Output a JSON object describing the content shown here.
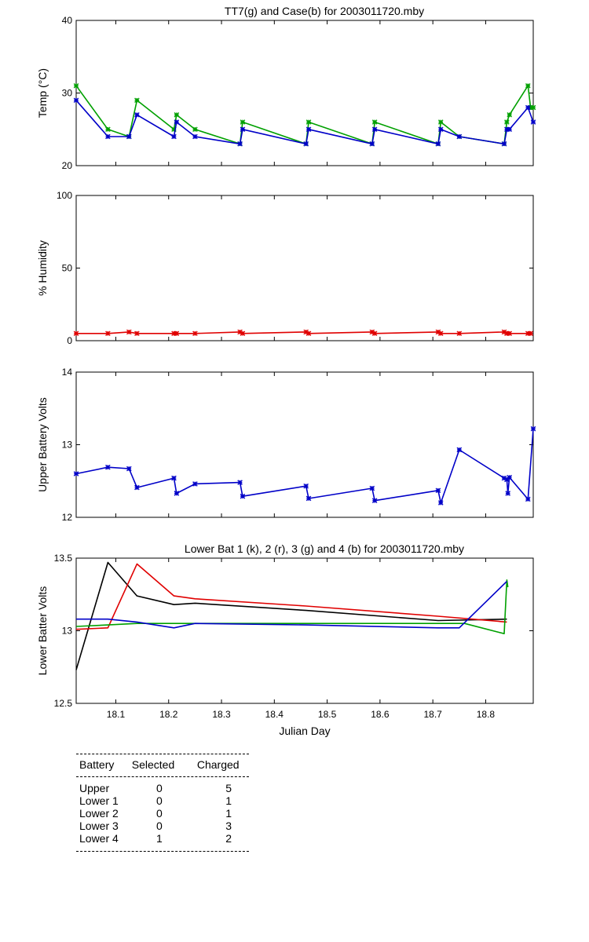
{
  "chart_data": [
    {
      "type": "line",
      "title": "TT7(g) and Case(b) for 2003011720.mby",
      "xlabel": "",
      "ylabel": "Temp  (°C)",
      "xlim": [
        18.025,
        18.89
      ],
      "ylim": [
        20,
        40
      ],
      "yticks": [
        20,
        30,
        40
      ],
      "xticks": [
        18.1,
        18.2,
        18.3,
        18.4,
        18.5,
        18.6,
        18.7,
        18.8
      ],
      "grid": false,
      "series": [
        {
          "color": "#00a000",
          "marker": true,
          "x": [
            18.025,
            18.085,
            18.125,
            18.14,
            18.21,
            18.215,
            18.25,
            18.335,
            18.34,
            18.46,
            18.465,
            18.585,
            18.59,
            18.71,
            18.715,
            18.75,
            18.835,
            18.84,
            18.845,
            18.88,
            18.885,
            18.89
          ],
          "y": [
            31,
            25,
            24,
            29,
            25,
            27,
            25,
            23,
            26,
            23,
            26,
            23,
            26,
            23,
            26,
            24,
            23,
            26,
            27,
            31,
            28,
            28
          ]
        },
        {
          "color": "#0000c8",
          "marker": true,
          "x": [
            18.025,
            18.085,
            18.125,
            18.14,
            18.21,
            18.215,
            18.25,
            18.335,
            18.34,
            18.46,
            18.465,
            18.585,
            18.59,
            18.71,
            18.715,
            18.75,
            18.835,
            18.84,
            18.845,
            18.88,
            18.89
          ],
          "y": [
            29,
            24,
            24,
            27,
            24,
            26,
            24,
            23,
            25,
            23,
            25,
            23,
            25,
            23,
            25,
            24,
            23,
            25,
            25,
            28,
            26
          ]
        }
      ]
    },
    {
      "type": "line",
      "title": "",
      "xlabel": "",
      "ylabel": "% Humidity",
      "xlim": [
        18.025,
        18.89
      ],
      "ylim": [
        0,
        100
      ],
      "yticks": [
        0,
        50,
        100
      ],
      "xticks": [
        18.1,
        18.2,
        18.3,
        18.4,
        18.5,
        18.6,
        18.7,
        18.8
      ],
      "grid": false,
      "series": [
        {
          "color": "#e00000",
          "marker": true,
          "x": [
            18.025,
            18.085,
            18.125,
            18.14,
            18.21,
            18.215,
            18.25,
            18.335,
            18.34,
            18.46,
            18.465,
            18.585,
            18.59,
            18.71,
            18.715,
            18.75,
            18.835,
            18.84,
            18.845,
            18.88,
            18.885
          ],
          "y": [
            5,
            5,
            6,
            5,
            5,
            5,
            5,
            6,
            5,
            6,
            5,
            6,
            5,
            6,
            5,
            5,
            6,
            5,
            5,
            5,
            5
          ]
        }
      ]
    },
    {
      "type": "line",
      "title": "",
      "xlabel": "",
      "ylabel": "Upper Battery Volts",
      "xlim": [
        18.025,
        18.89
      ],
      "ylim": [
        12,
        14
      ],
      "yticks": [
        12,
        13,
        14
      ],
      "xticks": [
        18.1,
        18.2,
        18.3,
        18.4,
        18.5,
        18.6,
        18.7,
        18.8
      ],
      "grid": false,
      "series": [
        {
          "color": "#0000c8",
          "marker": true,
          "x": [
            18.025,
            18.085,
            18.125,
            18.14,
            18.21,
            18.215,
            18.25,
            18.335,
            18.34,
            18.46,
            18.465,
            18.585,
            18.59,
            18.71,
            18.715,
            18.75,
            18.835,
            18.84,
            18.842,
            18.845,
            18.88,
            18.89
          ],
          "y": [
            12.6,
            12.69,
            12.67,
            12.41,
            12.54,
            12.33,
            12.46,
            12.48,
            12.29,
            12.43,
            12.26,
            12.4,
            12.23,
            12.37,
            12.2,
            12.93,
            12.54,
            12.52,
            12.33,
            12.55,
            12.25,
            13.22
          ]
        }
      ]
    },
    {
      "type": "line",
      "title": "Lower Bat 1 (k), 2 (r), 3 (g) and 4 (b) for 2003011720.mby",
      "xlabel": "Julian Day",
      "ylabel": "Lower Batter Volts",
      "xlim": [
        18.025,
        18.89
      ],
      "ylim": [
        12.5,
        13.5
      ],
      "yticks": [
        12.5,
        13,
        13.5
      ],
      "xticks": [
        18.1,
        18.2,
        18.3,
        18.4,
        18.5,
        18.6,
        18.7,
        18.8
      ],
      "xticklabels": [
        "18.1",
        "18.2",
        "18.3",
        "18.4",
        "18.5",
        "18.6",
        "18.7",
        "18.8"
      ],
      "grid": false,
      "series": [
        {
          "color": "#000000",
          "marker": false,
          "x": [
            18.025,
            18.085,
            18.14,
            18.21,
            18.25,
            18.46,
            18.71,
            18.84
          ],
          "y": [
            12.73,
            13.47,
            13.24,
            13.18,
            13.19,
            13.14,
            13.07,
            13.08
          ]
        },
        {
          "color": "#e00000",
          "marker": false,
          "x": [
            18.025,
            18.085,
            18.14,
            18.21,
            18.25,
            18.46,
            18.71,
            18.84
          ],
          "y": [
            13.01,
            13.02,
            13.46,
            13.24,
            13.22,
            13.17,
            13.1,
            13.06
          ]
        },
        {
          "color": "#00a000",
          "marker": false,
          "x": [
            18.025,
            18.085,
            18.14,
            18.21,
            18.25,
            18.46,
            18.71,
            18.76,
            18.835,
            18.84,
            18.842
          ],
          "y": [
            13.03,
            13.04,
            13.05,
            13.05,
            13.05,
            13.05,
            13.05,
            13.05,
            12.98,
            13.35,
            13.3
          ]
        },
        {
          "color": "#0000c8",
          "marker": false,
          "x": [
            18.025,
            18.085,
            18.14,
            18.21,
            18.25,
            18.46,
            18.71,
            18.75,
            18.84
          ],
          "y": [
            13.08,
            13.08,
            13.06,
            13.02,
            13.05,
            13.04,
            13.02,
            13.02,
            13.34
          ]
        }
      ]
    }
  ],
  "table": {
    "headers": [
      "Battery",
      "Selected",
      "Charged"
    ],
    "rows": [
      [
        "Upper",
        "0",
        "5"
      ],
      [
        "Lower 1",
        "0",
        "1"
      ],
      [
        "Lower 2",
        "0",
        "1"
      ],
      [
        "Lower 3",
        "0",
        "3"
      ],
      [
        "Lower 4",
        "1",
        "2"
      ]
    ]
  }
}
